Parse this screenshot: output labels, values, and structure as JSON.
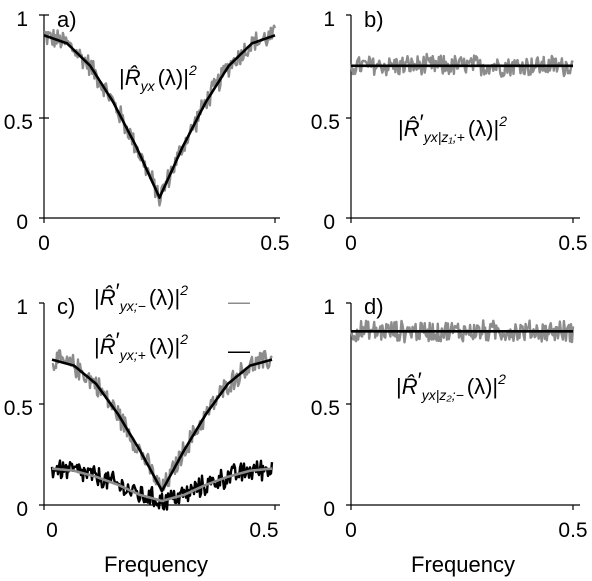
{
  "chart_data": [
    {
      "panel_label": "a)",
      "type": "line",
      "xlim": [
        0,
        0.5
      ],
      "ylim": [
        0,
        1
      ],
      "xticks": [
        "0",
        "0.5"
      ],
      "yticks": [
        "0",
        "0.5",
        "1"
      ],
      "xlabel": "",
      "annotation": {
        "pre": "|",
        "hat": "R̂",
        "sub": "yx",
        "post": "(λ)|",
        "sup": "2"
      },
      "series": [
        {
          "color": "#8c8c8c",
          "style": "noisy",
          "x": [
            0,
            0.05,
            0.1,
            0.15,
            0.2,
            0.25,
            0.3,
            0.35,
            0.4,
            0.45,
            0.5
          ],
          "y": [
            0.9,
            0.86,
            0.75,
            0.57,
            0.35,
            0.1,
            0.35,
            0.57,
            0.75,
            0.86,
            0.9
          ]
        },
        {
          "color": "#000000",
          "style": "smooth",
          "x": [
            0,
            0.05,
            0.1,
            0.15,
            0.2,
            0.25,
            0.3,
            0.35,
            0.4,
            0.45,
            0.5
          ],
          "y": [
            0.9,
            0.86,
            0.75,
            0.57,
            0.35,
            0.1,
            0.35,
            0.57,
            0.75,
            0.86,
            0.9
          ]
        }
      ]
    },
    {
      "panel_label": "b)",
      "type": "line",
      "xlim": [
        0,
        0.5
      ],
      "ylim": [
        0,
        1
      ],
      "xticks": [
        "0",
        "0.5"
      ],
      "yticks": [
        "0",
        "0.5",
        "1"
      ],
      "xlabel": "",
      "annotation": {
        "pre": "|",
        "hat": "R̂",
        "prime": "′",
        "sub": "yx|z₁;+",
        "post": "(λ)|",
        "sup": "2"
      },
      "series": [
        {
          "color": "#8c8c8c",
          "style": "noisy",
          "x": [
            0,
            0.5
          ],
          "y": [
            0.75,
            0.75
          ]
        },
        {
          "color": "#000000",
          "style": "smooth",
          "x": [
            0,
            0.5
          ],
          "y": [
            0.75,
            0.75
          ]
        }
      ]
    },
    {
      "panel_label": "c)",
      "type": "line",
      "xlim": [
        0,
        0.5
      ],
      "ylim": [
        0,
        1
      ],
      "xticks": [
        "0",
        "0.5"
      ],
      "yticks": [
        "0",
        "0.5",
        "1"
      ],
      "xlabel": "Frequency",
      "legend": [
        {
          "pre": "|",
          "hat": "R̂",
          "prime": "′",
          "sub": "yx;−",
          "post": "(λ)|",
          "sup": "2",
          "dash": "—",
          "color": "#8c8c8c"
        },
        {
          "pre": "|",
          "hat": "R̂",
          "prime": "′",
          "sub": "yx;+",
          "post": "(λ)|",
          "sup": "2",
          "dash": "—",
          "color": "#000000"
        }
      ],
      "series": [
        {
          "color": "#8c8c8c",
          "style": "noisy",
          "x": [
            0,
            0.05,
            0.1,
            0.15,
            0.2,
            0.25,
            0.3,
            0.35,
            0.4,
            0.45,
            0.5
          ],
          "y": [
            0.72,
            0.69,
            0.6,
            0.45,
            0.27,
            0.07,
            0.27,
            0.45,
            0.6,
            0.69,
            0.72
          ]
        },
        {
          "color": "#000000",
          "style": "smooth",
          "x": [
            0,
            0.05,
            0.1,
            0.15,
            0.2,
            0.25,
            0.3,
            0.35,
            0.4,
            0.45,
            0.5
          ],
          "y": [
            0.72,
            0.69,
            0.6,
            0.45,
            0.27,
            0.07,
            0.27,
            0.45,
            0.6,
            0.69,
            0.72
          ]
        },
        {
          "color": "#000000",
          "style": "noisy",
          "x": [
            0,
            0.05,
            0.1,
            0.15,
            0.2,
            0.25,
            0.3,
            0.35,
            0.4,
            0.45,
            0.5
          ],
          "y": [
            0.18,
            0.17,
            0.14,
            0.1,
            0.05,
            0.02,
            0.05,
            0.1,
            0.14,
            0.17,
            0.18
          ]
        },
        {
          "color": "#8c8c8c",
          "style": "smooth",
          "x": [
            0,
            0.05,
            0.1,
            0.15,
            0.2,
            0.25,
            0.3,
            0.35,
            0.4,
            0.45,
            0.5
          ],
          "y": [
            0.18,
            0.17,
            0.14,
            0.1,
            0.05,
            0.02,
            0.05,
            0.1,
            0.14,
            0.17,
            0.18
          ]
        }
      ]
    },
    {
      "panel_label": "d)",
      "type": "line",
      "xlim": [
        0,
        0.5
      ],
      "ylim": [
        0,
        1
      ],
      "xticks": [
        "0",
        "0.5"
      ],
      "yticks": [
        "0",
        "0.5",
        "1"
      ],
      "xlabel": "Frequency",
      "annotation": {
        "pre": "|",
        "hat": "R̂",
        "prime": "′",
        "sub": "yx|z₂;−",
        "post": "(λ)|",
        "sup": "2"
      },
      "series": [
        {
          "color": "#8c8c8c",
          "style": "noisy",
          "x": [
            0,
            0.5
          ],
          "y": [
            0.86,
            0.86
          ]
        },
        {
          "color": "#000000",
          "style": "smooth",
          "x": [
            0,
            0.5
          ],
          "y": [
            0.86,
            0.86
          ]
        }
      ]
    }
  ]
}
